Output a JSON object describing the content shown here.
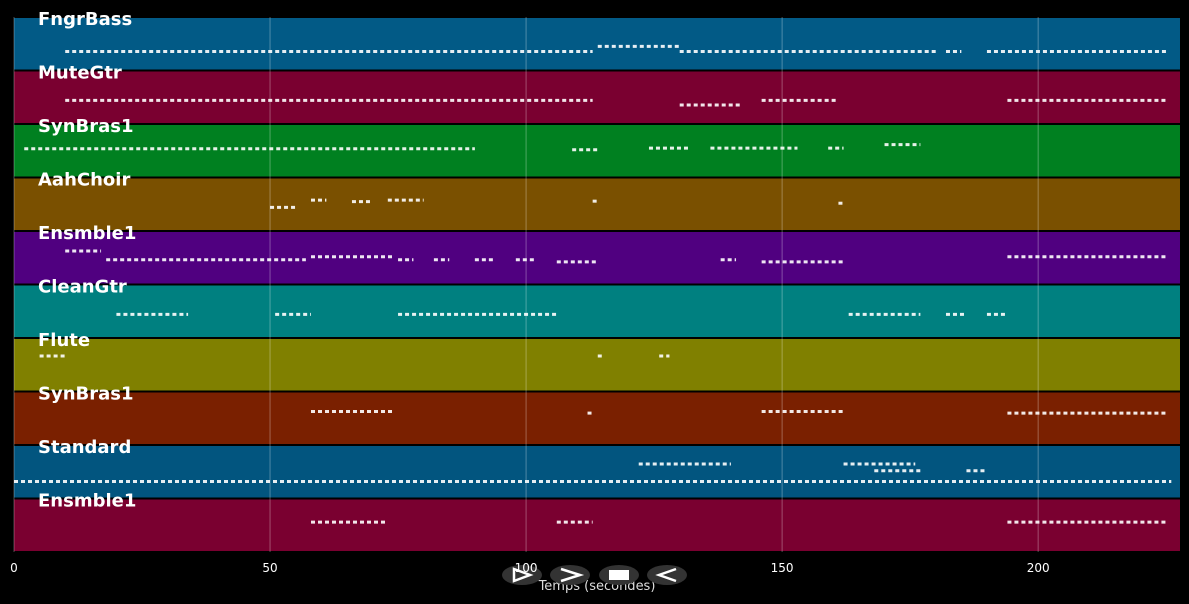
{
  "chart_data": {
    "type": "pianoroll",
    "xlabel": "Temps (secondes)",
    "xlim": [
      0,
      227.7
    ],
    "xticks": [
      0,
      50,
      100,
      150,
      200
    ],
    "grid": true,
    "series": [
      {
        "name": "FngrBass",
        "color": "#025a86",
        "starts": [
          10,
          114,
          130,
          182,
          190
        ],
        "ends": [
          113,
          130,
          180,
          185,
          225
        ],
        "levels": [
          0.35,
          0.45,
          0.35,
          0.35,
          0.35
        ]
      },
      {
        "name": "MuteGtr",
        "color": "#7a0030",
        "starts": [
          10,
          130,
          146,
          194
        ],
        "ends": [
          113,
          142,
          161,
          225
        ],
        "levels": [
          0.44,
          0.35,
          0.44,
          0.44
        ]
      },
      {
        "name": "SynBras1",
        "color": "#008020",
        "starts": [
          2,
          109,
          124,
          136,
          159,
          170
        ],
        "ends": [
          90,
          114,
          132,
          153,
          162,
          177
        ],
        "levels": [
          0.54,
          0.52,
          0.55,
          0.55,
          0.55,
          0.62
        ]
      },
      {
        "name": "AahChoir",
        "color": "#7a5000",
        "starts": [
          50,
          58,
          66,
          73,
          113,
          161
        ],
        "ends": [
          55,
          61,
          70,
          80,
          114,
          162
        ],
        "levels": [
          0.44,
          0.58,
          0.55,
          0.58,
          0.56,
          0.52
        ]
      },
      {
        "name": "Ensmble1",
        "color": "#500080",
        "starts": [
          10,
          18,
          58,
          75,
          82,
          90,
          98,
          106,
          138,
          146,
          194
        ],
        "ends": [
          17,
          57,
          74,
          78,
          85,
          94,
          102,
          114,
          141,
          162,
          225
        ],
        "levels": [
          0.63,
          0.46,
          0.52,
          0.46,
          0.46,
          0.46,
          0.46,
          0.42,
          0.46,
          0.42,
          0.52
        ]
      },
      {
        "name": "CleanGtr",
        "color": "#008080",
        "starts": [
          20,
          51,
          75,
          163,
          182,
          190
        ],
        "ends": [
          34,
          58,
          106,
          177,
          186,
          194
        ],
        "levels": [
          0.44,
          0.44,
          0.44,
          0.44,
          0.44,
          0.44
        ]
      },
      {
        "name": "Flute",
        "color": "#808000",
        "starts": [
          5,
          114,
          126
        ],
        "ends": [
          10,
          115,
          128
        ],
        "levels": [
          0.67,
          0.67,
          0.67
        ]
      },
      {
        "name": "SynBras1",
        "color": "#7a2000",
        "starts": [
          58,
          112,
          146,
          194
        ],
        "ends": [
          74,
          113,
          162,
          225
        ],
        "levels": [
          0.63,
          0.6,
          0.63,
          0.6
        ]
      },
      {
        "name": "Standard",
        "color": "#02557f",
        "starts": [
          0,
          122,
          162,
          168,
          186
        ],
        "ends": [
          226,
          140,
          176,
          177,
          190
        ],
        "levels": [
          0.31,
          0.65,
          0.65,
          0.52,
          0.52
        ]
      },
      {
        "name": "Ensmble1",
        "color": "#7a0030",
        "starts": [
          58,
          106,
          194
        ],
        "ends": [
          73,
          113,
          225
        ],
        "levels": [
          0.56,
          0.56,
          0.56
        ]
      }
    ]
  }
}
